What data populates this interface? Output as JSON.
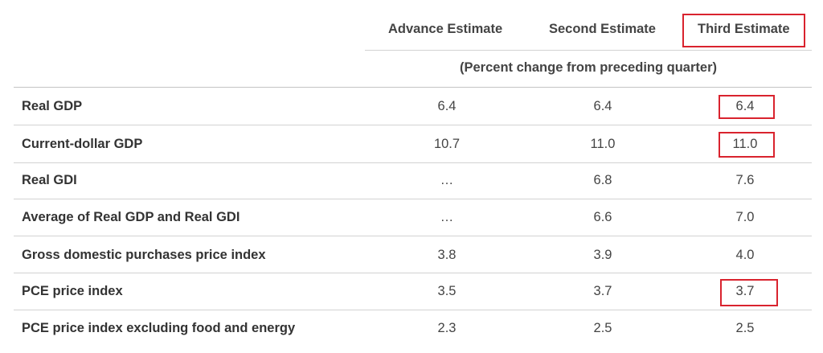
{
  "header": {
    "advance_estimate": "Advance Estimate",
    "second_estimate": "Second Estimate",
    "third_estimate": "Third Estimate"
  },
  "subheader": "(Percent change from preceding quarter)",
  "rows": [
    {
      "label": "Real GDP",
      "advance": "6.4",
      "second": "6.4",
      "third": "6.4"
    },
    {
      "label": "Current-dollar GDP",
      "advance": "10.7",
      "second": "11.0",
      "third": "11.0"
    },
    {
      "label": "Real GDI",
      "advance": "…",
      "second": "6.8",
      "third": "7.6"
    },
    {
      "label": "Average of Real GDP and Real GDI",
      "advance": "…",
      "second": "6.6",
      "third": "7.0"
    },
    {
      "label": "Gross domestic purchases price index",
      "advance": "3.8",
      "second": "3.9",
      "third": "4.0"
    },
    {
      "label": "PCE price index",
      "advance": "3.5",
      "second": "3.7",
      "third": "3.7"
    },
    {
      "label": "PCE price index excluding food and energy",
      "advance": "2.3",
      "second": "2.5",
      "third": "2.5"
    }
  ],
  "highlight_color": "#d9232e"
}
